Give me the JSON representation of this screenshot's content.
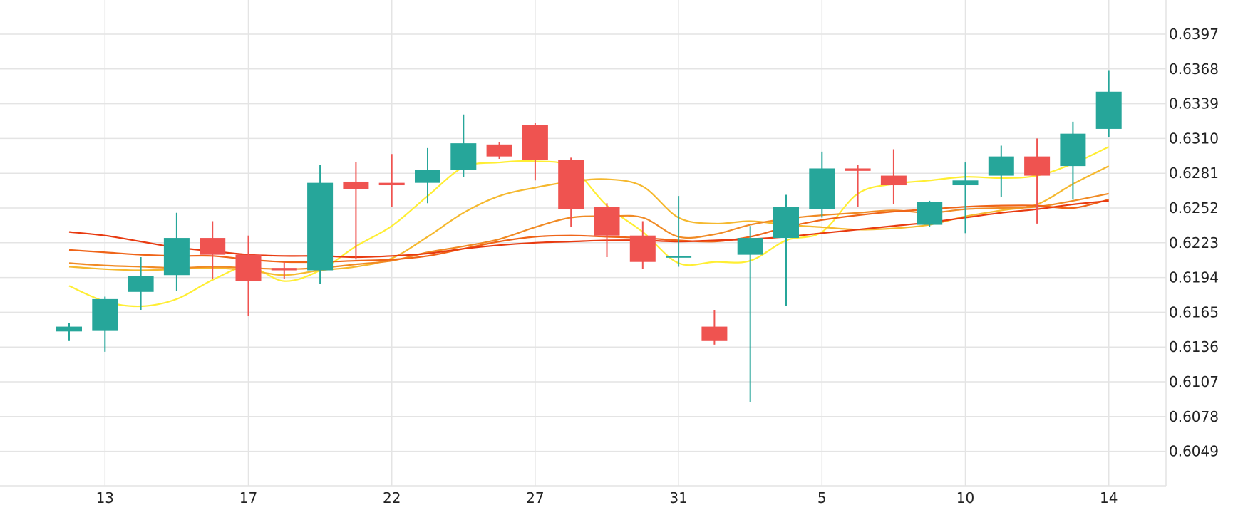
{
  "colors": {
    "up": "#26a69a",
    "down": "#ef5350",
    "ma": [
      "#ffee33",
      "#f5b82e",
      "#f08a24",
      "#ef6418",
      "#e83a10"
    ]
  },
  "chart_data": {
    "type": "candlestick",
    "title": "",
    "xlabel": "",
    "ylabel": "",
    "ylim": [
      0.602,
      0.6426
    ],
    "y_ticks": [
      "0.6397",
      "0.6368",
      "0.6339",
      "0.6310",
      "0.6281",
      "0.6252",
      "0.6223",
      "0.6194",
      "0.6165",
      "0.6136",
      "0.6107",
      "0.6078",
      "0.6049"
    ],
    "x_ticks": [
      {
        "label": "13",
        "index": 1
      },
      {
        "label": "17",
        "index": 5
      },
      {
        "label": "22",
        "index": 9
      },
      {
        "label": "27",
        "index": 13
      },
      {
        "label": "31",
        "index": 17
      },
      {
        "label": "5",
        "index": 21
      },
      {
        "label": "10",
        "index": 25
      },
      {
        "label": "14",
        "index": 29
      }
    ],
    "candles": [
      {
        "o": 0.6149,
        "h": 0.6156,
        "l": 0.6141,
        "c": 0.6153
      },
      {
        "o": 0.615,
        "h": 0.6178,
        "l": 0.6132,
        "c": 0.6176
      },
      {
        "o": 0.6182,
        "h": 0.6211,
        "l": 0.6167,
        "c": 0.6195
      },
      {
        "o": 0.6196,
        "h": 0.6248,
        "l": 0.6183,
        "c": 0.6227
      },
      {
        "o": 0.6227,
        "h": 0.6241,
        "l": 0.6193,
        "c": 0.6213
      },
      {
        "o": 0.6213,
        "h": 0.6229,
        "l": 0.6162,
        "c": 0.6191
      },
      {
        "o": 0.6202,
        "h": 0.6207,
        "l": 0.6193,
        "c": 0.62
      },
      {
        "o": 0.62,
        "h": 0.6288,
        "l": 0.6189,
        "c": 0.6273
      },
      {
        "o": 0.6274,
        "h": 0.629,
        "l": 0.6209,
        "c": 0.6268
      },
      {
        "o": 0.6273,
        "h": 0.6297,
        "l": 0.6253,
        "c": 0.6271
      },
      {
        "o": 0.6273,
        "h": 0.6302,
        "l": 0.6256,
        "c": 0.6284
      },
      {
        "o": 0.6284,
        "h": 0.633,
        "l": 0.6278,
        "c": 0.6306
      },
      {
        "o": 0.6305,
        "h": 0.6307,
        "l": 0.6293,
        "c": 0.6295
      },
      {
        "o": 0.6321,
        "h": 0.6323,
        "l": 0.6275,
        "c": 0.6292
      },
      {
        "o": 0.6292,
        "h": 0.6294,
        "l": 0.6236,
        "c": 0.6251
      },
      {
        "o": 0.6253,
        "h": 0.6256,
        "l": 0.6211,
        "c": 0.6229
      },
      {
        "o": 0.6229,
        "h": 0.6241,
        "l": 0.6201,
        "c": 0.6207
      },
      {
        "o": 0.6211,
        "h": 0.6262,
        "l": 0.6203,
        "c": 0.6212
      },
      {
        "o": 0.6153,
        "h": 0.6167,
        "l": 0.6138,
        "c": 0.6141
      },
      {
        "o": 0.6213,
        "h": 0.6237,
        "l": 0.609,
        "c": 0.6227
      },
      {
        "o": 0.6227,
        "h": 0.6263,
        "l": 0.617,
        "c": 0.6253
      },
      {
        "o": 0.6251,
        "h": 0.6299,
        "l": 0.6244,
        "c": 0.6285
      },
      {
        "o": 0.6285,
        "h": 0.6288,
        "l": 0.6253,
        "c": 0.6283
      },
      {
        "o": 0.6279,
        "h": 0.6301,
        "l": 0.6255,
        "c": 0.6271
      },
      {
        "o": 0.6238,
        "h": 0.6258,
        "l": 0.6236,
        "c": 0.6257
      },
      {
        "o": 0.6271,
        "h": 0.629,
        "l": 0.6231,
        "c": 0.6275
      },
      {
        "o": 0.6279,
        "h": 0.6304,
        "l": 0.6261,
        "c": 0.6295
      },
      {
        "o": 0.6295,
        "h": 0.631,
        "l": 0.6239,
        "c": 0.6279
      },
      {
        "o": 0.6287,
        "h": 0.6324,
        "l": 0.6259,
        "c": 0.6314
      },
      {
        "o": 0.6318,
        "h": 0.6367,
        "l": 0.6311,
        "c": 0.6349
      }
    ],
    "moving_averages": [
      {
        "values": [
          0.6187,
          0.6174,
          0.617,
          0.6176,
          0.6192,
          0.6203,
          0.6191,
          0.62,
          0.622,
          0.6237,
          0.6262,
          0.6286,
          0.629,
          0.6291,
          0.6286,
          0.6254,
          0.6232,
          0.6206,
          0.6207,
          0.6208,
          0.6225,
          0.6232,
          0.6264,
          0.6272,
          0.6275,
          0.6278,
          0.6277,
          0.6279,
          0.6289,
          0.6303
        ]
      },
      {
        "values": [
          0.6203,
          0.6201,
          0.62,
          0.6201,
          0.6202,
          0.62,
          0.6196,
          0.62,
          0.6203,
          0.621,
          0.6228,
          0.6248,
          0.6262,
          0.6269,
          0.6274,
          0.6276,
          0.627,
          0.6244,
          0.6239,
          0.6241,
          0.6238,
          0.6236,
          0.6234,
          0.6235,
          0.6238,
          0.6245,
          0.625,
          0.6255,
          0.6272,
          0.6287
        ]
      },
      {
        "values": [
          0.6206,
          0.6204,
          0.6203,
          0.6202,
          0.6203,
          0.6202,
          0.6201,
          0.6202,
          0.6205,
          0.6208,
          0.6215,
          0.622,
          0.6226,
          0.6236,
          0.6244,
          0.6245,
          0.6244,
          0.6228,
          0.623,
          0.6238,
          0.6243,
          0.6246,
          0.6248,
          0.625,
          0.6248,
          0.6251,
          0.6252,
          0.6253,
          0.6258,
          0.6264
        ]
      },
      {
        "values": [
          0.6217,
          0.6215,
          0.6213,
          0.6212,
          0.6212,
          0.6209,
          0.6207,
          0.6207,
          0.6208,
          0.6209,
          0.6212,
          0.6218,
          0.6224,
          0.6228,
          0.6229,
          0.6228,
          0.6227,
          0.6225,
          0.6224,
          0.6228,
          0.6236,
          0.6242,
          0.6246,
          0.6249,
          0.6251,
          0.6253,
          0.6254,
          0.6254,
          0.6252,
          0.6259
        ]
      },
      {
        "values": [
          0.6232,
          0.6229,
          0.6224,
          0.6219,
          0.6216,
          0.6213,
          0.6212,
          0.6212,
          0.6211,
          0.6212,
          0.6214,
          0.6218,
          0.6221,
          0.6223,
          0.6224,
          0.6225,
          0.6225,
          0.6224,
          0.6225,
          0.6226,
          0.6228,
          0.6231,
          0.6234,
          0.6237,
          0.624,
          0.6244,
          0.6248,
          0.6251,
          0.6255,
          0.6258
        ]
      }
    ],
    "grid": true
  }
}
